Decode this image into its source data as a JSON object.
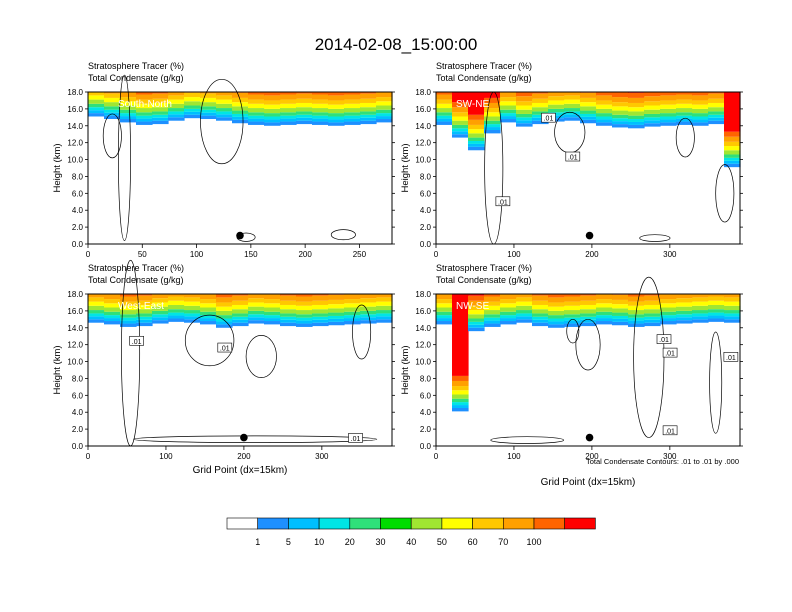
{
  "title": "2014-02-08_15:00:00",
  "colors": {
    "scale": [
      "#ffffff",
      "#1e90ff",
      "#00bfff",
      "#00e5e5",
      "#2fe07a",
      "#00dc00",
      "#a0e632",
      "#ffff00",
      "#ffc800",
      "#ffa000",
      "#ff6400",
      "#ff0000"
    ],
    "contour": "#000000",
    "frame": "#000000"
  },
  "chart_data": [
    {
      "type": "heatmap",
      "subtitle1": "Stratosphere Tracer   (%)",
      "subtitle2": "Total Condensate   (g/kg)",
      "label": "South-North",
      "ylabel": "Height (km)",
      "xlabel": "",
      "xlim": [
        0,
        280
      ],
      "ylim": [
        0,
        18
      ],
      "xticks": [
        "0",
        "50",
        "100",
        "150",
        "200",
        "250"
      ],
      "xtick_values": [
        0,
        50,
        100,
        150,
        200,
        250
      ],
      "yticks": [
        "0.0",
        "2.0",
        "4.0",
        "6.0",
        "8.0",
        "10.0",
        "12.0",
        "14.0",
        "16.0",
        "18.0"
      ],
      "marker_x": 140,
      "marker_y": 1.0,
      "tracer_base_km": [
        15.5,
        15.2,
        14.8,
        14.5,
        14.6,
        15.0,
        15.3,
        15.2,
        15.0,
        14.7,
        14.5,
        14.4,
        14.5,
        14.6,
        14.5,
        14.4,
        14.5,
        14.6,
        14.8
      ],
      "contour_labels": []
    },
    {
      "type": "heatmap",
      "subtitle1": "Stratosphere Tracer   (%)",
      "subtitle2": "Total Condensate   (g/kg)",
      "label": "SW-NE",
      "ylabel": "Height (km)",
      "xlabel": "",
      "xlim": [
        0,
        390
      ],
      "ylim": [
        0,
        18
      ],
      "xticks": [
        "0",
        "100",
        "200",
        "300"
      ],
      "xtick_values": [
        0,
        100,
        200,
        300
      ],
      "yticks": [
        "0.0",
        "2.0",
        "4.0",
        "6.0",
        "8.0",
        "10.0",
        "12.0",
        "14.0",
        "16.0",
        "18.0"
      ],
      "marker_x": 197,
      "marker_y": 1.0,
      "tracer_base_km": [
        14.5,
        13.0,
        11.5,
        13.5,
        14.8,
        14.3,
        14.6,
        14.9,
        15.0,
        14.7,
        14.4,
        14.2,
        14.1,
        14.3,
        14.4,
        14.5,
        14.4,
        14.6,
        9.5
      ],
      "contour_labels": [
        ".01",
        ".01",
        ".01"
      ]
    },
    {
      "type": "heatmap",
      "subtitle1": "Stratosphere Tracer   (%)",
      "subtitle2": "Total Condensate   (g/kg)",
      "label": "West-East",
      "ylabel": "Height (km)",
      "xlabel": "Grid Point (dx=15km)",
      "xlim": [
        0,
        390
      ],
      "ylim": [
        0,
        18
      ],
      "xticks": [
        "0",
        "100",
        "200",
        "300"
      ],
      "xtick_values": [
        0,
        100,
        200,
        300
      ],
      "yticks": [
        "0.0",
        "2.0",
        "4.0",
        "6.0",
        "8.0",
        "10.0",
        "12.0",
        "14.0",
        "16.0",
        "18.0"
      ],
      "marker_x": 200,
      "marker_y": 1.0,
      "tracer_base_km": [
        15.0,
        14.8,
        14.5,
        14.6,
        14.9,
        15.1,
        15.0,
        14.8,
        14.4,
        14.6,
        14.9,
        14.8,
        14.6,
        14.5,
        14.6,
        14.7,
        14.8,
        14.9,
        15.0
      ],
      "contour_labels": [
        ".01",
        ".01",
        ".01"
      ]
    },
    {
      "type": "heatmap",
      "subtitle1": "Stratosphere Tracer   (%)",
      "subtitle2": "Total Condensate   (g/kg)",
      "label": "NW-SE",
      "ylabel": "Height (km)",
      "xlabel": "Grid Point (dx=15km)",
      "xlim": [
        0,
        390
      ],
      "ylim": [
        0,
        18
      ],
      "xticks": [
        "0",
        "100",
        "200",
        "300"
      ],
      "xtick_values": [
        0,
        100,
        200,
        300
      ],
      "yticks": [
        "0.0",
        "2.0",
        "4.0",
        "6.0",
        "8.0",
        "10.0",
        "12.0",
        "14.0",
        "16.0",
        "18.0"
      ],
      "marker_x": 197,
      "marker_y": 1.0,
      "tracer_base_km": [
        14.8,
        4.5,
        14.0,
        14.5,
        14.8,
        15.0,
        14.6,
        14.4,
        14.5,
        14.6,
        14.8,
        14.7,
        14.5,
        14.6,
        14.8,
        14.9,
        15.0,
        15.1,
        15.0
      ],
      "contour_labels": [
        ".01",
        ".01",
        ".01",
        ".01"
      ],
      "footnote": "Total Condensate Contours: .01 to .01 by .000"
    }
  ],
  "colorbar": {
    "labels": [
      "1",
      "5",
      "10",
      "20",
      "30",
      "40",
      "50",
      "60",
      "70",
      "100"
    ]
  }
}
